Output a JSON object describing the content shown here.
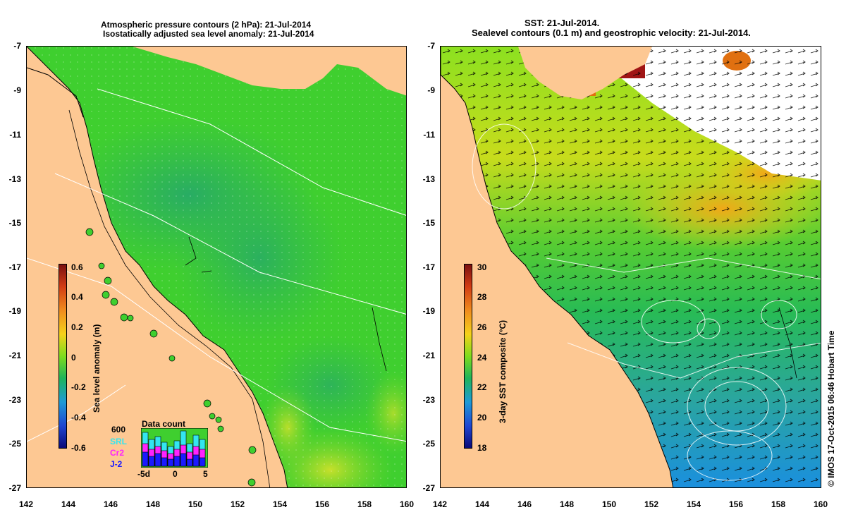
{
  "left_panel": {
    "title_line1": "Atmospheric pressure contours (2 hPa): 21-Jul-2014",
    "title_line2": "Isostatically adjusted sea level anomaly: 21-Jul-2014",
    "colorbar": {
      "label": "Sea level anomaly (m)",
      "ticks": [
        "0.6",
        "0.4",
        "0.2",
        "0",
        "-0.2",
        "-0.4",
        "-0.6"
      ],
      "range": [
        -0.6,
        0.6
      ]
    },
    "data_count": {
      "title": "Data count",
      "max_label": "600",
      "legend": [
        {
          "name": "SRL",
          "color": "#33e6f0"
        },
        {
          "name": "Cr2",
          "color": "#ff22ff"
        },
        {
          "name": "J-2",
          "color": "#1a1aff"
        }
      ],
      "x_labels": [
        "-5d",
        "0",
        "5"
      ]
    }
  },
  "right_panel": {
    "title_line1": "SST: 21-Jul-2014.",
    "title_line2": "Sealevel contours (0.1 m) and geostrophic velocity: 21-Jul-2014.",
    "colorbar": {
      "label": "3-day SST composite (°C)",
      "ticks": [
        "30",
        "28",
        "26",
        "24",
        "22",
        "20",
        "18"
      ],
      "range": [
        18,
        30
      ]
    },
    "credit": "© IMOS 17-Oct-2015 06:46 Hobart Time"
  },
  "axes": {
    "lat_ticks": [
      "-7",
      "-9",
      "-11",
      "-13",
      "-15",
      "-17",
      "-19",
      "-21",
      "-23",
      "-25",
      "-27"
    ],
    "lon_ticks": [
      "142",
      "144",
      "146",
      "148",
      "150",
      "152",
      "154",
      "156",
      "158",
      "160"
    ],
    "lat_range": [
      -27,
      -7
    ],
    "lon_range": [
      142,
      160
    ]
  },
  "colors": {
    "land": "#fdc893",
    "anomaly_green": "#3fcf2f",
    "anomaly_teal": "#2fb35a",
    "sst_green": "#33cc33",
    "sst_yellow": "#e6d619",
    "sst_blue": "#1a8fdf"
  }
}
